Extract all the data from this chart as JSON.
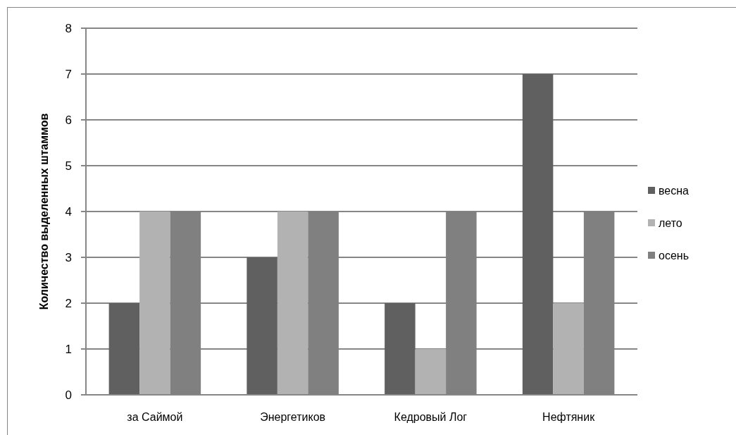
{
  "chart_data": {
    "type": "bar",
    "ylabel": "Количество выделенных штаммов",
    "categories": [
      "за Саймой",
      "Энергетиков",
      "Кедровый Лог",
      "Нефтяник"
    ],
    "series": [
      {
        "name": "весна",
        "color": "#606060",
        "values": [
          2,
          3,
          2,
          7
        ]
      },
      {
        "name": "лето",
        "color": "#b2b2b2",
        "values": [
          4,
          4,
          1,
          2
        ]
      },
      {
        "name": "осень",
        "color": "#808080",
        "values": [
          4,
          4,
          4,
          4
        ]
      }
    ],
    "ylim": [
      0,
      8
    ],
    "yticks": [
      0,
      1,
      2,
      3,
      4,
      5,
      6,
      7,
      8
    ],
    "grid": "y",
    "legend": "right"
  }
}
